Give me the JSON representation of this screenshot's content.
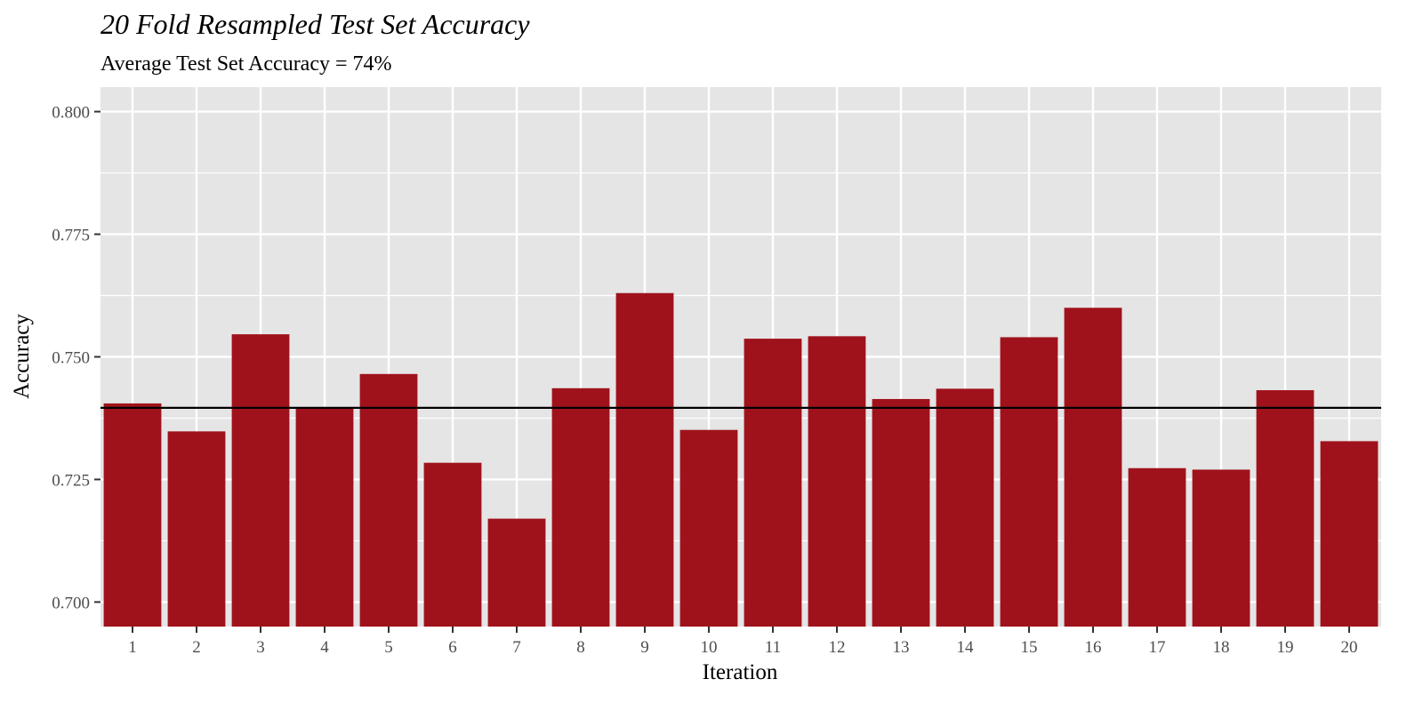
{
  "chart_data": {
    "type": "bar",
    "title": "20 Fold Resampled Test Set Accuracy",
    "subtitle": "Average Test Set Accuracy = 74%",
    "xlabel": "Iteration",
    "ylabel": "Accuracy",
    "categories": [
      "1",
      "2",
      "3",
      "4",
      "5",
      "6",
      "7",
      "8",
      "9",
      "10",
      "11",
      "12",
      "13",
      "14",
      "15",
      "16",
      "17",
      "18",
      "19",
      "20"
    ],
    "values": [
      0.7405,
      0.7348,
      0.7546,
      0.7395,
      0.7465,
      0.7284,
      0.717,
      0.7436,
      0.763,
      0.7351,
      0.7537,
      0.7542,
      0.7414,
      0.7435,
      0.754,
      0.76,
      0.7273,
      0.727,
      0.7432,
      0.7328
    ],
    "reference_line": 0.7396,
    "ylim": [
      0.695,
      0.805
    ],
    "yticks": [
      0.7,
      0.725,
      0.75,
      0.775,
      0.8
    ],
    "ytick_labels": [
      "0.700",
      "0.725",
      "0.750",
      "0.775",
      "0.800"
    ],
    "grid": true,
    "legend": "none",
    "colors": {
      "bar": "#A0121B",
      "panel": "#E5E5E5",
      "grid": "#FFFFFF",
      "reference_line": "#000000"
    }
  }
}
